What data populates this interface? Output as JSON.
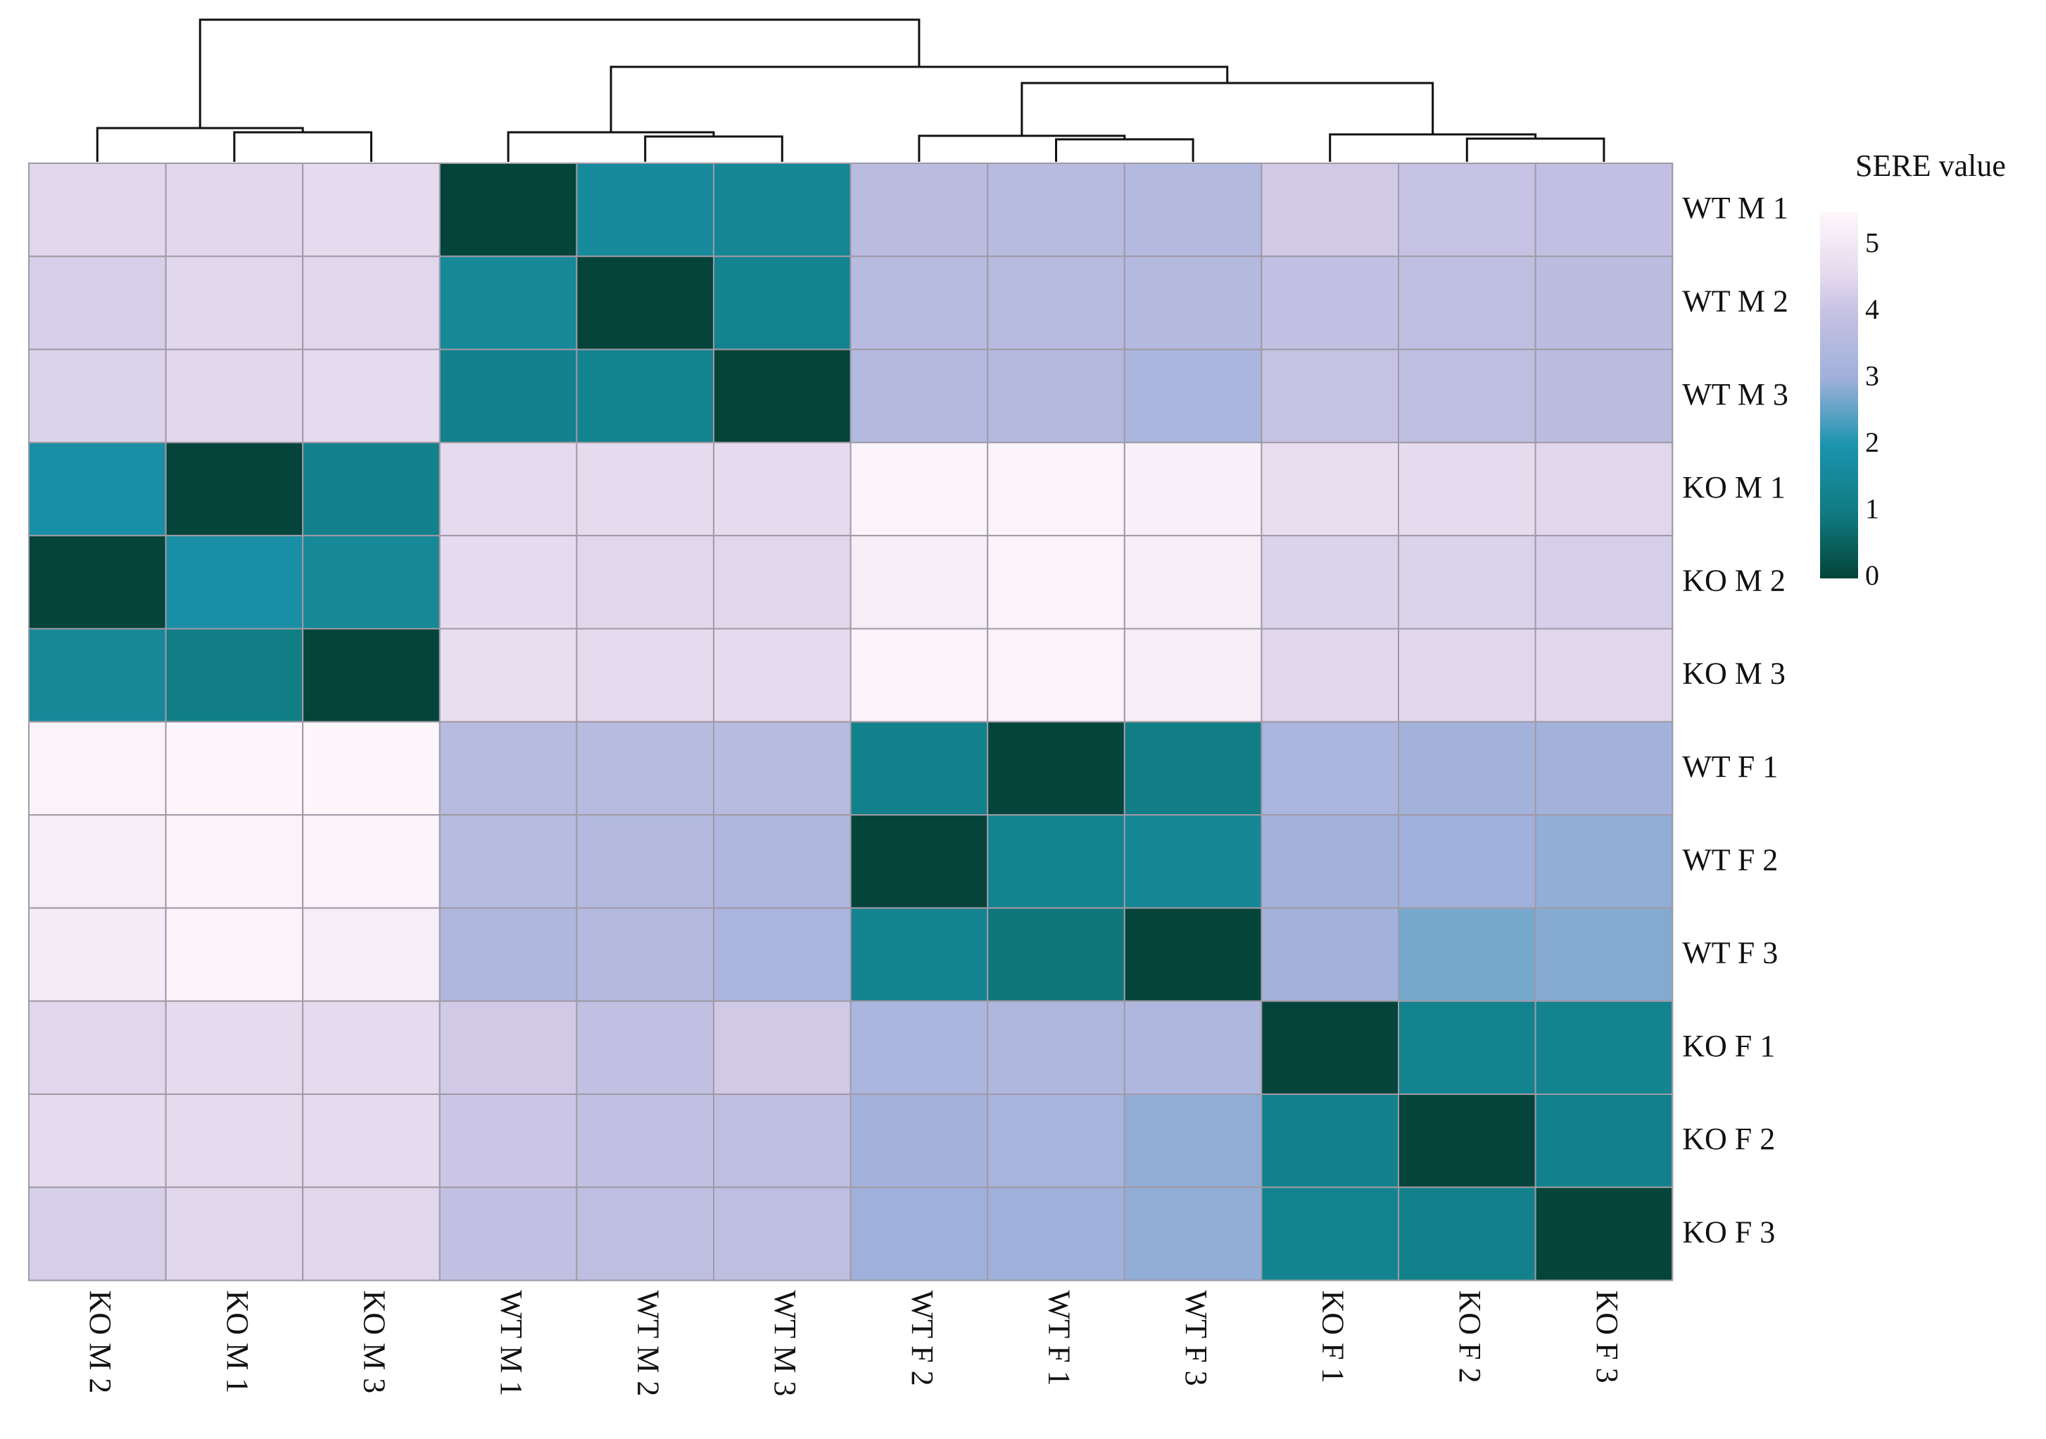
{
  "chart_data": {
    "type": "heatmap",
    "title": "",
    "legend_title": "SERE value",
    "color_scale": {
      "min": 0,
      "max": 5.5,
      "ticks": [
        0,
        1,
        2,
        3,
        4,
        5
      ],
      "stops": [
        {
          "value": 0,
          "color": "#04443a"
        },
        {
          "value": 1,
          "color": "#107c82"
        },
        {
          "value": 2,
          "color": "#1b94ae"
        },
        {
          "value": 3,
          "color": "#9fb0da"
        },
        {
          "value": 4,
          "color": "#c6c2e3"
        },
        {
          "value": 4.6,
          "color": "#e6dbee"
        },
        {
          "value": 5.5,
          "color": "#fdf7fc"
        }
      ]
    },
    "row_labels": [
      "WT M 1",
      "WT M 2",
      "WT M 3",
      "KO M 1",
      "KO M 2",
      "KO M 3",
      "WT F 1",
      "WT F 2",
      "WT F 3",
      "KO F 1",
      "KO F 2",
      "KO F 3"
    ],
    "col_labels": [
      "KO M 2",
      "KO M 1",
      "KO M 3",
      "WT M 1",
      "WT M 2",
      "WT M 3",
      "WT F 2",
      "WT F 1",
      "WT F 3",
      "KO F 1",
      "KO F 2",
      "KO F 3"
    ],
    "values": [
      [
        4.5,
        4.5,
        4.6,
        0.0,
        1.6,
        1.4,
        3.7,
        3.6,
        3.5,
        4.2,
        4.0,
        3.9
      ],
      [
        4.3,
        4.5,
        4.5,
        1.5,
        0.0,
        1.3,
        3.6,
        3.6,
        3.5,
        3.9,
        3.8,
        3.7
      ],
      [
        4.4,
        4.5,
        4.6,
        1.2,
        1.3,
        0.0,
        3.5,
        3.5,
        3.3,
        4.0,
        3.8,
        3.7
      ],
      [
        1.8,
        0.0,
        1.2,
        4.6,
        4.6,
        4.6,
        5.4,
        5.4,
        5.3,
        4.7,
        4.6,
        4.5
      ],
      [
        0.0,
        1.8,
        1.5,
        4.6,
        4.5,
        4.5,
        5.2,
        5.4,
        5.2,
        4.4,
        4.4,
        4.3
      ],
      [
        1.5,
        1.1,
        0.0,
        4.7,
        4.6,
        4.6,
        5.4,
        5.4,
        5.2,
        4.5,
        4.5,
        4.5
      ],
      [
        5.4,
        5.5,
        5.5,
        3.6,
        3.6,
        3.6,
        1.2,
        0.0,
        1.1,
        3.3,
        3.1,
        3.1
      ],
      [
        5.2,
        5.4,
        5.4,
        3.6,
        3.5,
        3.4,
        0.0,
        1.3,
        1.4,
        3.1,
        3.0,
        2.9
      ],
      [
        5.1,
        5.4,
        5.2,
        3.4,
        3.5,
        3.3,
        1.3,
        0.9,
        0.0,
        3.1,
        2.7,
        2.8
      ],
      [
        4.5,
        4.6,
        4.6,
        4.2,
        3.9,
        4.2,
        3.3,
        3.4,
        3.4,
        0.0,
        1.3,
        1.3
      ],
      [
        4.6,
        4.6,
        4.6,
        4.1,
        3.9,
        3.8,
        3.1,
        3.2,
        2.9,
        1.2,
        0.0,
        1.2
      ],
      [
        4.3,
        4.5,
        4.5,
        3.9,
        3.8,
        3.8,
        3.0,
        3.0,
        2.9,
        1.3,
        1.2,
        0.0
      ]
    ]
  }
}
